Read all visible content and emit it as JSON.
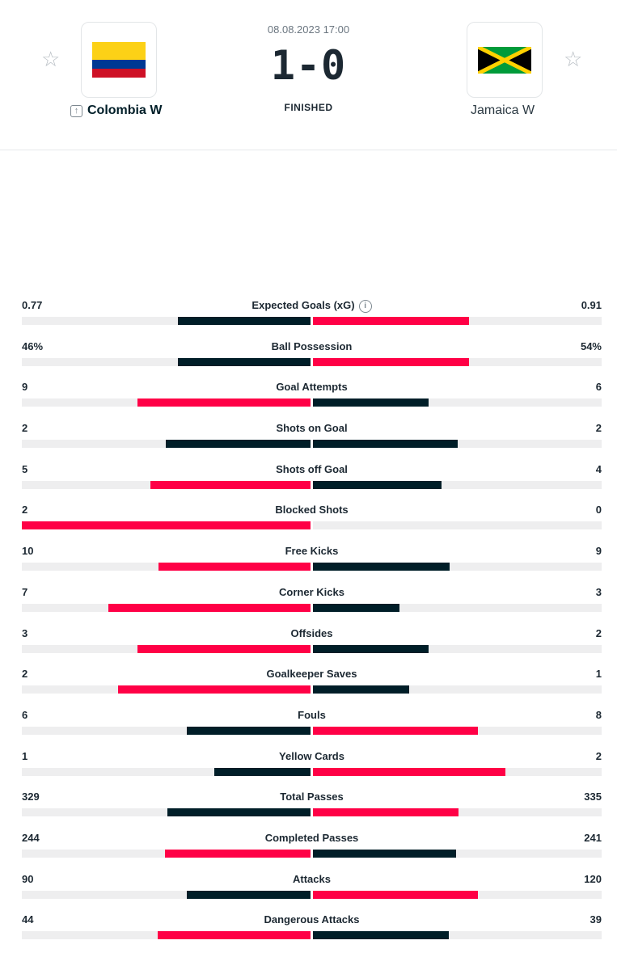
{
  "match": {
    "datetime": "08.08.2023 17:00",
    "score": "1-0",
    "status": "FINISHED",
    "home": {
      "name": "Colombia W",
      "flag_colors": [
        "#fcd116",
        "#003893",
        "#ce1126"
      ]
    },
    "away": {
      "name": "Jamaica W",
      "flag_colors": [
        "#009b3a",
        "#fed100",
        "#000000"
      ]
    }
  },
  "colors": {
    "winner_bar": "#ff0046",
    "loser_bar": "#001e28",
    "track": "#eeeeef"
  },
  "stats": [
    {
      "label": "Expected Goals (xG)",
      "home": "0.77",
      "away": "0.91",
      "home_share": 0.458,
      "away_share": 0.542,
      "info_icon": true
    },
    {
      "label": "Ball Possession",
      "home": "46%",
      "away": "54%",
      "home_share": 0.46,
      "away_share": 0.54
    },
    {
      "label": "Goal Attempts",
      "home": "9",
      "away": "6",
      "home_share": 0.6,
      "away_share": 0.4
    },
    {
      "label": "Shots on Goal",
      "home": "2",
      "away": "2",
      "home_share": 0.5,
      "away_share": 0.5
    },
    {
      "label": "Shots off Goal",
      "home": "5",
      "away": "4",
      "home_share": 0.556,
      "away_share": 0.444
    },
    {
      "label": "Blocked Shots",
      "home": "2",
      "away": "0",
      "home_share": 1.0,
      "away_share": 0.0
    },
    {
      "label": "Free Kicks",
      "home": "10",
      "away": "9",
      "home_share": 0.526,
      "away_share": 0.474
    },
    {
      "label": "Corner Kicks",
      "home": "7",
      "away": "3",
      "home_share": 0.7,
      "away_share": 0.3
    },
    {
      "label": "Offsides",
      "home": "3",
      "away": "2",
      "home_share": 0.6,
      "away_share": 0.4
    },
    {
      "label": "Goalkeeper Saves",
      "home": "2",
      "away": "1",
      "home_share": 0.667,
      "away_share": 0.333
    },
    {
      "label": "Fouls",
      "home": "6",
      "away": "8",
      "home_share": 0.429,
      "away_share": 0.571
    },
    {
      "label": "Yellow Cards",
      "home": "1",
      "away": "2",
      "home_share": 0.333,
      "away_share": 0.667
    },
    {
      "label": "Total Passes",
      "home": "329",
      "away": "335",
      "home_share": 0.495,
      "away_share": 0.505
    },
    {
      "label": "Completed Passes",
      "home": "244",
      "away": "241",
      "home_share": 0.503,
      "away_share": 0.497
    },
    {
      "label": "Attacks",
      "home": "90",
      "away": "120",
      "home_share": 0.429,
      "away_share": 0.571
    },
    {
      "label": "Dangerous Attacks",
      "home": "44",
      "away": "39",
      "home_share": 0.53,
      "away_share": 0.47
    }
  ]
}
